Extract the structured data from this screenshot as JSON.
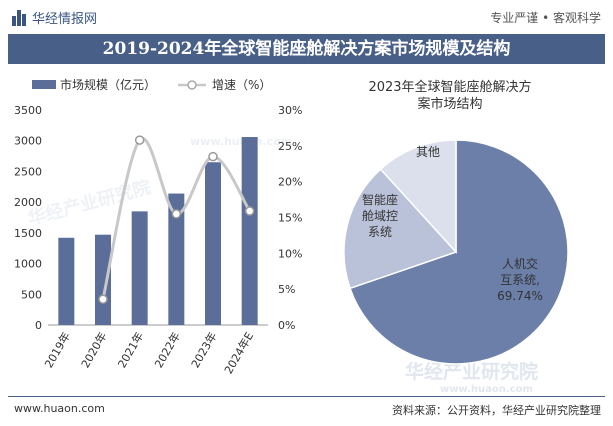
{
  "header": {
    "brand": "华经情报网",
    "slogan": "专业严谨 • 客观科学",
    "title": "2019-2024年全球智能座舱解决方案市场规模及结构"
  },
  "footer": {
    "url": "www.huaon.com",
    "source": "资料来源：公开资料，华经产业研究院整理"
  },
  "watermark": {
    "cn": "华经产业研究院",
    "url": "www.huaon.com"
  },
  "colors": {
    "bar": "#5b6e99",
    "line": "#c8c8c8",
    "pie_main": "#6b7fa8",
    "pie_mid": "#b9c2d8",
    "pie_small": "#dbe0ec",
    "title_bg": "#485f88"
  },
  "chart_data": [
    {
      "type": "bar",
      "categories": [
        "2019年",
        "2020年",
        "2021年",
        "2022年",
        "2023年",
        "2024年E"
      ],
      "series": [
        {
          "name": "市场规模（亿元）",
          "values": [
            1420,
            1470,
            1850,
            2140,
            2650,
            3060
          ],
          "axis": "left"
        },
        {
          "name": "增速（%）",
          "type": "line",
          "values": [
            null,
            3.6,
            25.8,
            15.5,
            23.5,
            15.9
          ],
          "axis": "right",
          "smooth": true
        }
      ],
      "ylim": [
        0,
        3500
      ],
      "yticks": [
        0,
        500,
        1000,
        1500,
        2000,
        2500,
        3000,
        3500
      ],
      "y2lim": [
        0,
        30
      ],
      "y2ticks": [
        "0%",
        "5%",
        "10%",
        "15%",
        "20%",
        "25%",
        "30%"
      ],
      "legend": "top"
    },
    {
      "type": "pie",
      "title": "2023年全球智能座舱解决方案市场结构",
      "slices": [
        {
          "label": "人机交互系统",
          "value": 69.74,
          "display": "人机交互系统,69.74%"
        },
        {
          "label": "智能座舱域控系统",
          "value": 18.5
        },
        {
          "label": "其他",
          "value": 11.76
        }
      ]
    }
  ]
}
